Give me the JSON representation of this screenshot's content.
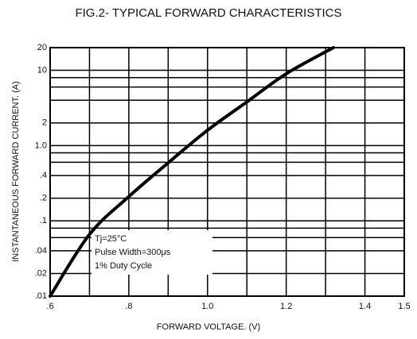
{
  "chart_data": {
    "type": "line",
    "title": "FIG.2- TYPICAL FORWARD CHARACTERISTICS",
    "x_label": "FORWARD VOLTAGE. (V)",
    "y_label": "INSTANTANEOUS FORWARD CURRENT. (A)",
    "annotations": [
      "Tj=25°C",
      "Pulse Width=300μs",
      "1% Duty Cycle"
    ],
    "x": [
      0.6,
      0.7,
      0.8,
      0.9,
      1.0,
      1.1,
      1.2,
      1.32
    ],
    "series": [
      {
        "name": null,
        "color": "#000000",
        "values": [
          0.01,
          0.066,
          0.21,
          0.59,
          1.6,
          3.8,
          9,
          20
        ]
      }
    ],
    "xlim": [
      0.6,
      1.5
    ],
    "ylim": [
      0.01,
      20
    ],
    "y_log": true,
    "grid": true,
    "xticks": [
      {
        "value": 0.6,
        "label": ".6"
      },
      {
        "value": 0.8,
        "label": ".8"
      },
      {
        "value": 1.0,
        "label": "1.0"
      },
      {
        "value": 1.2,
        "label": "1.2"
      },
      {
        "value": 1.4,
        "label": "1.4"
      },
      {
        "value": 1.5,
        "label": "1.5"
      }
    ],
    "x_minor_grid": [
      0.7,
      0.9,
      1.1,
      1.3
    ],
    "yticks": [
      20,
      10,
      2,
      {
        "value": 1,
        "label": "1.0"
      },
      {
        "value": 0.4,
        "label": ".4"
      },
      {
        "value": 0.2,
        "label": ".2"
      },
      {
        "value": 0.1,
        "label": ".1"
      },
      {
        "value": 0.04,
        "label": ".04"
      },
      {
        "value": 0.02,
        "label": ".02"
      },
      {
        "value": 0.01,
        "label": ".01"
      }
    ],
    "y_minor_grid": [
      8,
      6,
      4,
      0.8,
      0.6,
      0.08,
      0.06
    ]
  }
}
